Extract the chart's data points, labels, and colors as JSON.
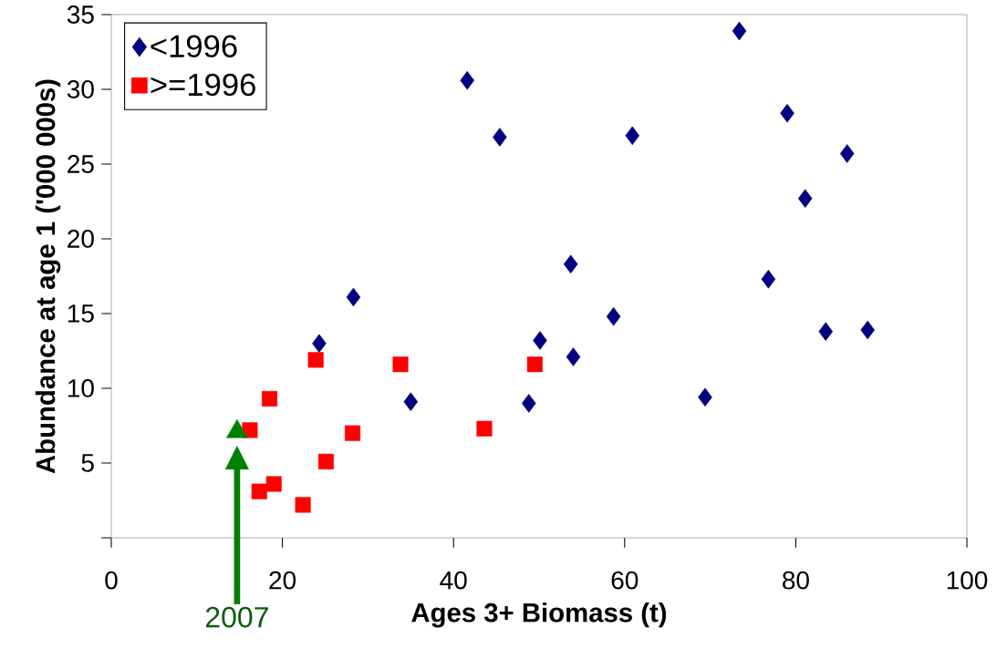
{
  "chart_data": {
    "type": "scatter",
    "xlabel": "Ages 3+ Biomass (t)",
    "ylabel": "Abundance at age 1 ('000 000s)",
    "xlim": [
      0,
      100
    ],
    "xticks": [
      0,
      20,
      40,
      60,
      80,
      100
    ],
    "ylim": [
      0,
      35
    ],
    "yticks": [
      {
        "value": 0,
        "label": null
      },
      5,
      10,
      15,
      20,
      25,
      30,
      35
    ],
    "grid": false,
    "legend": "top left",
    "series": [
      {
        "name": "<1996",
        "color": "#000080",
        "marker": "diamond",
        "x": [
          24.3,
          28.3,
          35.0,
          41.6,
          45.4,
          48.8,
          50.1,
          53.7,
          54.0,
          58.7,
          60.9,
          69.4,
          73.4,
          76.8,
          79.0,
          81.1,
          83.5,
          86.0,
          88.4
        ],
        "values": [
          13.0,
          16.1,
          9.1,
          30.6,
          26.8,
          9.0,
          13.2,
          18.3,
          12.1,
          14.8,
          26.9,
          9.4,
          33.9,
          17.3,
          28.4,
          22.7,
          13.8,
          25.7,
          13.9
        ]
      },
      {
        "name": ">=1996",
        "color": "#ff0000",
        "marker": "square",
        "x": [
          16.2,
          17.3,
          18.5,
          19.0,
          22.4,
          23.9,
          25.1,
          28.2,
          33.8,
          43.6,
          49.5
        ],
        "values": [
          7.2,
          3.1,
          9.3,
          3.6,
          2.2,
          11.9,
          5.1,
          7.0,
          11.6,
          7.3,
          11.6
        ]
      },
      {
        "color": "#008000",
        "marker": "triangle",
        "x": [
          14.7
        ],
        "values": [
          7.1
        ]
      }
    ],
    "annotations": [
      "2007"
    ]
  }
}
